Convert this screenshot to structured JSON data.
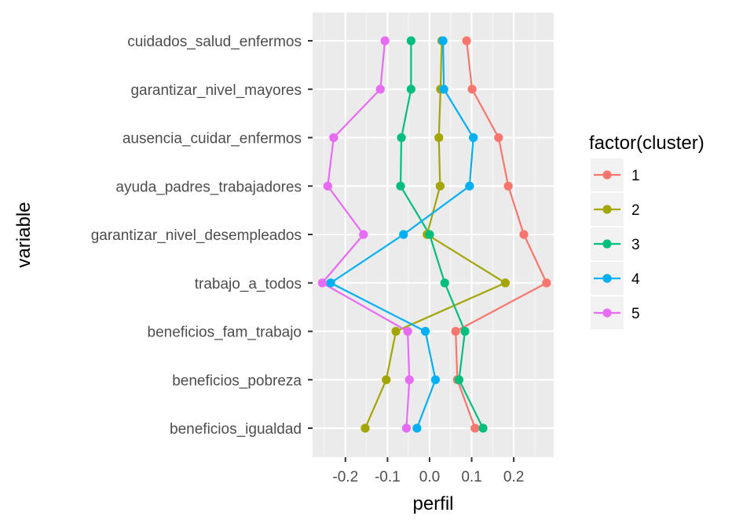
{
  "chart_data": {
    "type": "line",
    "xlabel": "perfil",
    "ylabel": "variable",
    "xlim": [
      -0.278,
      0.295
    ],
    "x_ticks": [
      -0.2,
      -0.1,
      0.0,
      0.1,
      0.2
    ],
    "x_tick_labels": [
      "-0.2",
      "-0.1",
      "0.0",
      "0.1",
      "0.2"
    ],
    "grid": true,
    "legend_placement": "right",
    "categories": [
      "cuidados_salud_enfermos",
      "garantizar_nivel_mayores",
      "ausencia_cuidar_enfermos",
      "ayuda_padres_trabajadores",
      "garantizar_nivel_desempleados",
      "trabajo_a_todos",
      "beneficios_fam_trabajo",
      "beneficios_pobreza",
      "beneficios_igualdad"
    ],
    "legend_title": "factor(cluster)",
    "series": [
      {
        "name": "1",
        "color": "#F8766D",
        "values": [
          0.088,
          0.101,
          0.164,
          0.187,
          0.224,
          0.278,
          0.062,
          0.066,
          0.108
        ]
      },
      {
        "name": "2",
        "color": "#A3A500",
        "values": [
          0.029,
          0.026,
          0.022,
          0.025,
          -0.006,
          0.18,
          -0.08,
          -0.103,
          -0.153
        ]
      },
      {
        "name": "3",
        "color": "#00BF7D",
        "values": [
          -0.044,
          -0.044,
          -0.067,
          -0.069,
          0.0,
          0.036,
          0.084,
          0.07,
          0.127
        ]
      },
      {
        "name": "4",
        "color": "#00B0F6",
        "values": [
          0.032,
          0.034,
          0.104,
          0.095,
          -0.062,
          -0.235,
          -0.01,
          0.014,
          -0.03
        ]
      },
      {
        "name": "5",
        "color": "#E76BF3",
        "values": [
          -0.106,
          -0.117,
          -0.228,
          -0.242,
          -0.157,
          -0.255,
          -0.052,
          -0.048,
          -0.055
        ]
      }
    ]
  }
}
